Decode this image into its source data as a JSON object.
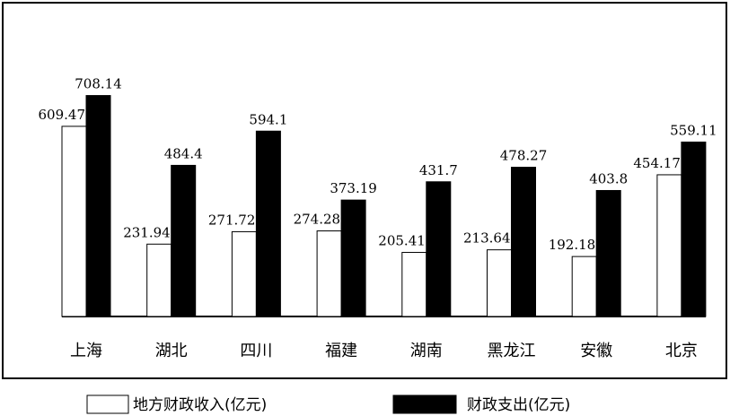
{
  "chart_data": {
    "type": "bar",
    "title": "",
    "xlabel": "",
    "ylabel": "",
    "grid": false,
    "legend_position": "bottom",
    "ylim": [
      0,
      750
    ],
    "categories": [
      "上海",
      "湖北",
      "四川",
      "福建",
      "湖南",
      "黑龙江",
      "安徽",
      "北京"
    ],
    "series": [
      {
        "name": "地方财政收入(亿元)",
        "color": "#ffffff",
        "values": [
          609.47,
          231.94,
          271.72,
          274.28,
          205.41,
          213.64,
          192.18,
          454.17
        ],
        "labels": [
          "609.47",
          "231.94",
          "271.72",
          "274.28",
          "205.41",
          "213.64",
          "192.18",
          "454.17"
        ]
      },
      {
        "name": "财政支出(亿元)",
        "color": "#000000",
        "values": [
          708.14,
          484.4,
          594.1,
          373.19,
          431.7,
          478.27,
          403.8,
          559.11
        ],
        "labels": [
          "708.14",
          "484.4",
          "594.1",
          "373.19",
          "431.7",
          "478.27",
          "403.8",
          "559.11"
        ]
      }
    ]
  }
}
